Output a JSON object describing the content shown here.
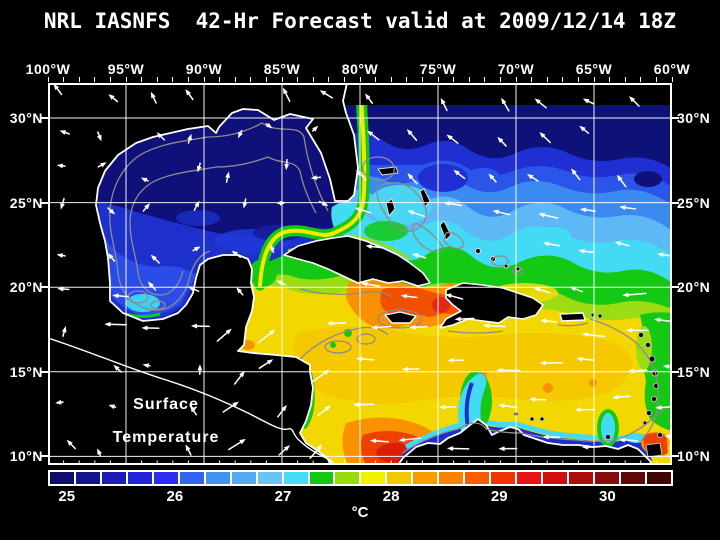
{
  "header": {
    "title": "NRL IASNFS  42-Hr Forecast valid at 2009/12/14 18Z"
  },
  "map": {
    "top_axis_labels": [
      "100°W",
      "95°W",
      "90°W",
      "85°W",
      "80°W",
      "75°W",
      "70°W",
      "65°W",
      "60°W"
    ],
    "left_axis_labels": [
      "30°N",
      "25°N",
      "20°N",
      "15°N",
      "10°N"
    ],
    "right_axis_labels": [
      "30°N",
      "25°N",
      "20°N",
      "15°N",
      "10°N"
    ],
    "annotation": {
      "line1": "Surface",
      "line2": "Temperature"
    },
    "colors": {
      "background": "#000000",
      "land": "#000000",
      "coastline": "#ffffff",
      "bathymetry_contour": "#8c8c8c",
      "grid": "#ffffff",
      "wind_arrows": "#ffffff",
      "text": "#ffffff"
    }
  },
  "colorbar": {
    "unit": "°C",
    "ticks": [
      {
        "label": "25",
        "pos": 0.03
      },
      {
        "label": "26",
        "pos": 0.203
      },
      {
        "label": "27",
        "pos": 0.376
      },
      {
        "label": "28",
        "pos": 0.549
      },
      {
        "label": "29",
        "pos": 0.722
      },
      {
        "label": "30",
        "pos": 0.895
      }
    ],
    "segment_colors": [
      "#0d0d6b",
      "#14148f",
      "#1c1cb6",
      "#2424d8",
      "#2d2df0",
      "#3264f0",
      "#4190f2",
      "#55aaf4",
      "#69c4f6",
      "#45ddf5",
      "#12c812",
      "#96dc0f",
      "#f2f200",
      "#f2c800",
      "#fa9b00",
      "#fa8200",
      "#f95d00",
      "#f03600",
      "#e61414",
      "#d00f0f",
      "#ad0d0d",
      "#8a0b0b",
      "#600808",
      "#400606"
    ]
  },
  "chart_data": {
    "type": "heatmap",
    "title": "NRL IASNFS 42-Hr Forecast valid at 2009/12/14 18Z",
    "field_label": "Surface Temperature",
    "unit": "°C",
    "lon_ticks": [
      "100°W",
      "95°W",
      "90°W",
      "85°W",
      "80°W",
      "75°W",
      "70°W",
      "65°W",
      "60°W"
    ],
    "lat_ticks": [
      "30°N",
      "25°N",
      "20°N",
      "15°N",
      "10°N"
    ],
    "colorbar_tick_values": [
      25,
      26,
      27,
      28,
      29,
      30
    ],
    "colorbar_segment_count": 24,
    "approx_region_values_c": {
      "northern_gulf_of_mexico": 25,
      "southern_gulf_of_mexico": 25.5,
      "nw_atlantic_north_of_28n": 25,
      "atlantic_near_22n": 27,
      "central_caribbean": 28,
      "windward_passage_area": 29,
      "sw_caribbean_off_colombia": 29.5,
      "venezuela_coastal_upwelling": 27
    },
    "legend_position": "bottom",
    "grid": true
  }
}
